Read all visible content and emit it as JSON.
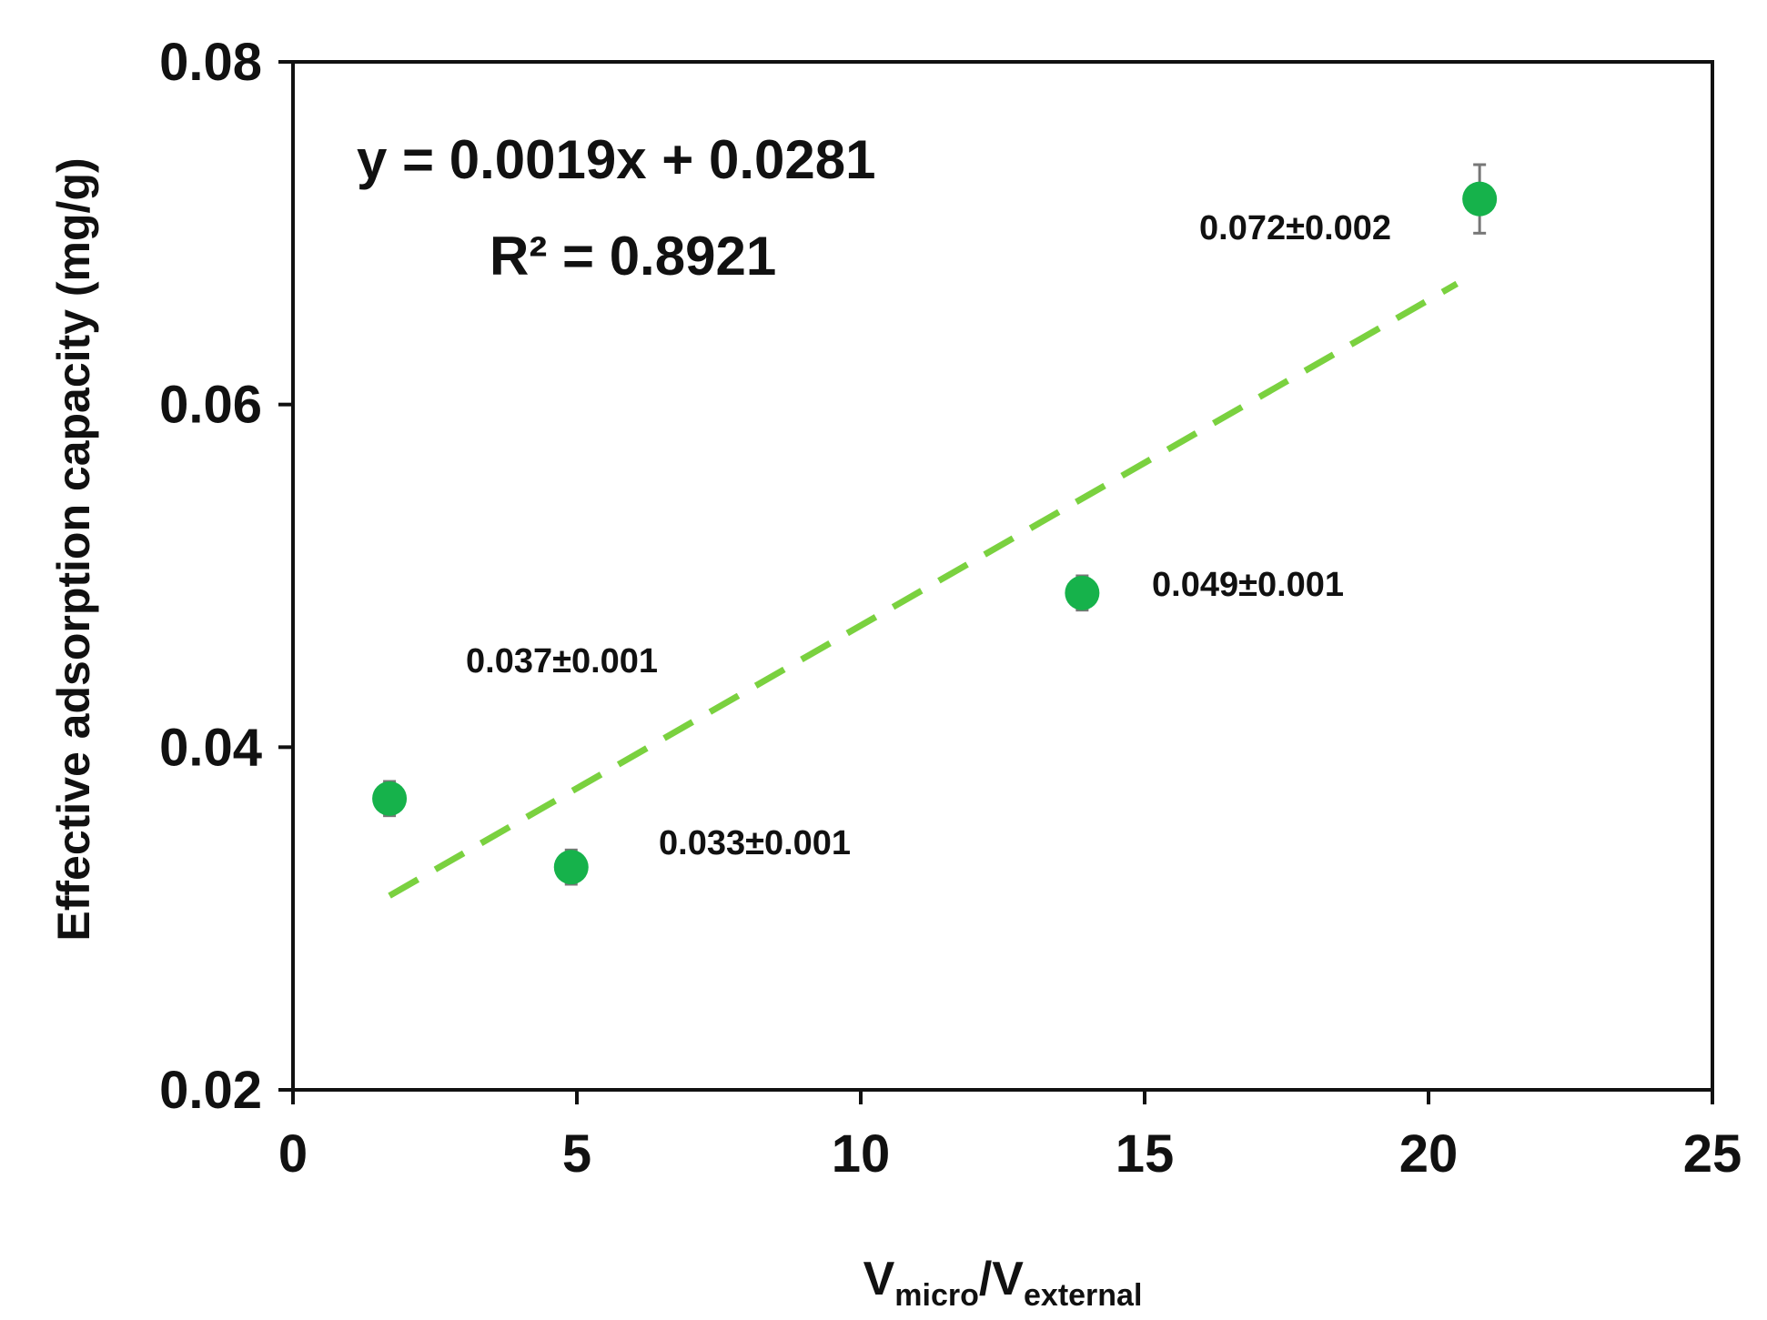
{
  "chart_data": {
    "type": "scatter",
    "title": "",
    "xlabel": {
      "main": "V",
      "sub1": "micro",
      "sep": "/V",
      "sub2": "external"
    },
    "ylabel": "Effective adsorption capacity (mg/g)",
    "xlim": [
      0,
      25
    ],
    "ylim": [
      0.02,
      0.08
    ],
    "x_ticks": [
      0,
      5,
      10,
      15,
      20,
      25
    ],
    "x_tick_labels": [
      "0",
      "5",
      "10",
      "15",
      "20",
      "25"
    ],
    "y_ticks": [
      0.02,
      0.04,
      0.06,
      0.08
    ],
    "y_tick_labels": [
      "0.02",
      "0.04",
      "0.06",
      "0.08"
    ],
    "grid": false,
    "legend": "none",
    "series": [
      {
        "name": "Effective adsorption capacity",
        "color": "#16b24b",
        "points": [
          {
            "x": 1.7,
            "y": 0.037,
            "err": 0.001,
            "label": "0.037±0.001"
          },
          {
            "x": 4.9,
            "y": 0.033,
            "err": 0.001,
            "label": "0.033±0.001"
          },
          {
            "x": 13.9,
            "y": 0.049,
            "err": 0.001,
            "label": "0.049±0.001"
          },
          {
            "x": 20.9,
            "y": 0.072,
            "err": 0.002,
            "label": "0.072±0.002"
          }
        ]
      }
    ],
    "trendline": {
      "slope": 0.0019,
      "intercept": 0.0281,
      "x_range": [
        1.7,
        20.5
      ],
      "color": "#7ad13f",
      "style": "dashed",
      "equation": "y = 0.0019x + 0.0281",
      "r2_label": "R² = 0.8921"
    }
  }
}
